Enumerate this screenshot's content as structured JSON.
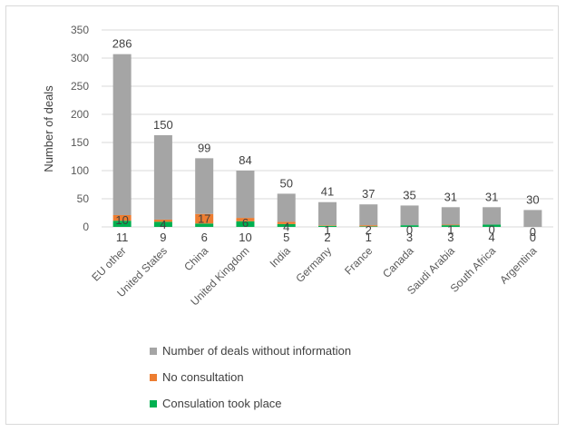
{
  "chart_data": {
    "type": "bar",
    "stacked": true,
    "ylabel": "Number of deals",
    "xlabel": "",
    "ylim": [
      0,
      350
    ],
    "yticks": [
      0,
      50,
      100,
      150,
      200,
      250,
      300,
      350
    ],
    "grid": true,
    "legend_position": "bottom",
    "categories": [
      "EU other",
      "United States",
      "China",
      "United Kingdom",
      "India",
      "Germany",
      "France",
      "Canada",
      "Saudi Arabia",
      "South Africa",
      "Argentina"
    ],
    "series": [
      {
        "name": "Consulation took place",
        "color": "#00b050",
        "values": [
          11,
          9,
          6,
          10,
          5,
          2,
          1,
          3,
          3,
          4,
          0
        ]
      },
      {
        "name": "No consultation",
        "color": "#ed7d31",
        "values": [
          10,
          4,
          17,
          6,
          4,
          1,
          2,
          0,
          1,
          0,
          0
        ]
      },
      {
        "name": "Number of deals without information",
        "color": "#a5a5a5",
        "values": [
          286,
          150,
          99,
          84,
          50,
          41,
          37,
          35,
          31,
          31,
          30
        ]
      }
    ],
    "legend_order": [
      2,
      1,
      0
    ]
  }
}
